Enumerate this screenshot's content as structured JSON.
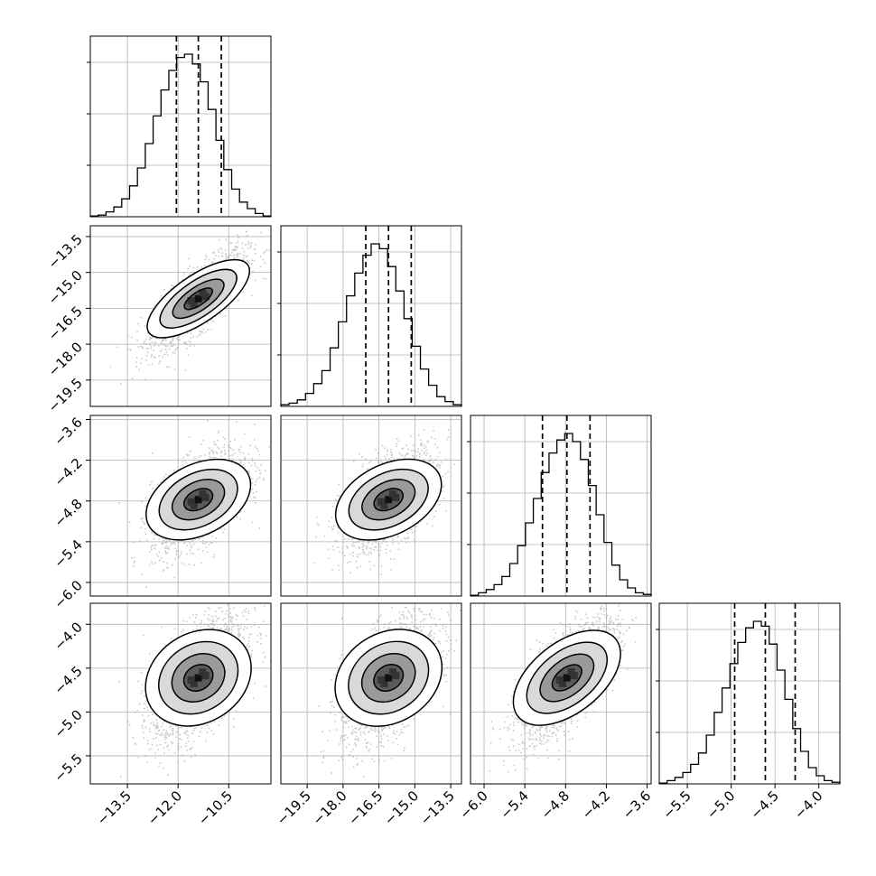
{
  "chart_data": {
    "type": "corner",
    "title": "",
    "grid": true,
    "parameters": [
      {
        "range": [
          -14.6,
          -9.25
        ],
        "ticks": [
          -13.5,
          -12.0,
          -10.5
        ],
        "tick_labels": [
          "−13.5",
          "−12.0",
          "−10.5"
        ]
      },
      {
        "range": [
          -20.6,
          -13.05
        ],
        "ticks": [
          -19.5,
          -18.0,
          -16.5,
          -15.0,
          -13.5
        ],
        "tick_labels": [
          "−19.5",
          "−18.0",
          "−16.5",
          "−15.0",
          "−13.5"
        ]
      },
      {
        "range": [
          -6.2,
          -3.54
        ],
        "ticks": [
          -6.0,
          -5.4,
          -4.8,
          -4.2,
          -3.6
        ],
        "tick_labels": [
          "−6.0",
          "−5.4",
          "−4.8",
          "−4.2",
          "−3.6"
        ]
      },
      {
        "range": [
          -5.82,
          -3.76
        ],
        "ticks": [
          -5.5,
          -5.0,
          -4.5,
          -4.0
        ],
        "tick_labels": [
          "−5.5",
          "−5.0",
          "−4.5",
          "−4.0"
        ]
      }
    ],
    "quantiles": [
      [
        -12.05,
        -11.4,
        -10.72
      ],
      [
        -17.05,
        -16.1,
        -15.15
      ],
      [
        -5.14,
        -4.78,
        -4.44
      ],
      [
        -4.96,
        -4.61,
        -4.27
      ]
    ],
    "histograms": [
      [
        0.5,
        1,
        3,
        6,
        11,
        19,
        30,
        45,
        62,
        78,
        90,
        98,
        100,
        94,
        83,
        66,
        47,
        29,
        17,
        9,
        5,
        2,
        0.5
      ],
      [
        1,
        2,
        4,
        8,
        14,
        22,
        36,
        52,
        68,
        82,
        93,
        100,
        97,
        86,
        71,
        54,
        37,
        23,
        13,
        6,
        3,
        1
      ],
      [
        0.5,
        2,
        4,
        7,
        12,
        20,
        31,
        45,
        60,
        76,
        88,
        96,
        100,
        95,
        84,
        68,
        50,
        33,
        19,
        10,
        5,
        2,
        1
      ],
      [
        0.5,
        2,
        4,
        7,
        12,
        19,
        30,
        44,
        59,
        74,
        87,
        96,
        100,
        97,
        86,
        70,
        52,
        34,
        20,
        10,
        5,
        2,
        1
      ]
    ],
    "correlations": [
      [
        1,
        0.78,
        0.55,
        0.55
      ],
      [
        0.78,
        1,
        0.55,
        0.55
      ],
      [
        0.55,
        0.55,
        1,
        0.72
      ],
      [
        0.55,
        0.55,
        0.72,
        1
      ]
    ],
    "hist_style": {
      "line_color": "#000000",
      "quantile_style": "dashed"
    },
    "contour_color": "#000000",
    "scatter_color": "#9e9e9e",
    "grid_color": "#b0b0b0"
  }
}
